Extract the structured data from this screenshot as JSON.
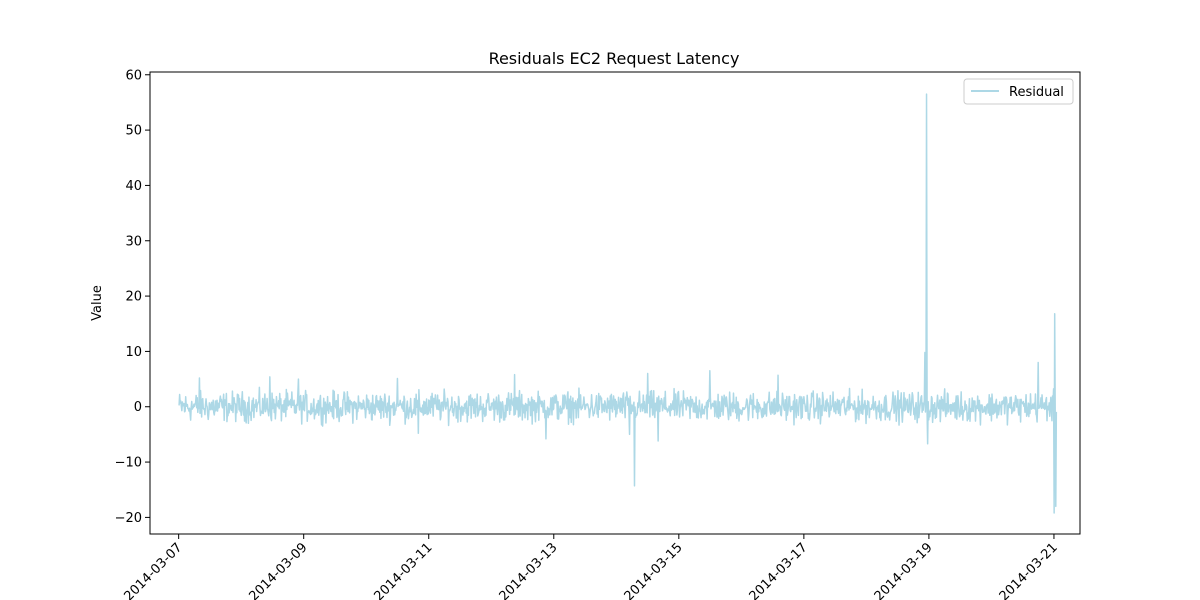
{
  "chart_data": {
    "type": "line",
    "title": "Residuals EC2 Request Latency",
    "xlabel": "",
    "ylabel": "Value",
    "xlim": [
      "2014-03-06T13:00",
      "2014-03-21T10:00"
    ],
    "ylim": [
      -23,
      60.5
    ],
    "x_ticks": [
      "2014-03-07",
      "2014-03-09",
      "2014-03-11",
      "2014-03-13",
      "2014-03-15",
      "2014-03-17",
      "2014-03-19",
      "2014-03-21"
    ],
    "y_ticks": [
      -20,
      -10,
      0,
      10,
      20,
      30,
      40,
      50,
      60
    ],
    "grid": false,
    "legend": {
      "placement": "top-right",
      "entries": [
        "Residual"
      ]
    },
    "series": [
      {
        "name": "Residual",
        "color": "#add8e6",
        "x_start": "2014-03-07T00:10",
        "x_end": "2014-03-21T01:00",
        "baseline_min": -3.5,
        "baseline_max": 3.5,
        "spikes": [
          {
            "x": "2014-03-07T08:00",
            "y": 5.2
          },
          {
            "x": "2014-03-08T11:00",
            "y": 5.4
          },
          {
            "x": "2014-03-08T22:00",
            "y": 5.0
          },
          {
            "x": "2014-03-10T12:00",
            "y": 5.1
          },
          {
            "x": "2014-03-10T20:00",
            "y": -4.8
          },
          {
            "x": "2014-03-12T09:00",
            "y": 5.8
          },
          {
            "x": "2014-03-12T21:00",
            "y": -5.8
          },
          {
            "x": "2014-03-14T05:00",
            "y": -5.0
          },
          {
            "x": "2014-03-14T07:00",
            "y": -14.3
          },
          {
            "x": "2014-03-14T12:00",
            "y": 6.0
          },
          {
            "x": "2014-03-14T16:00",
            "y": -6.2
          },
          {
            "x": "2014-03-15T12:00",
            "y": 6.5
          },
          {
            "x": "2014-03-16T14:00",
            "y": 5.7
          },
          {
            "x": "2014-03-18T22:30",
            "y": 9.8
          },
          {
            "x": "2014-03-18T23:00",
            "y": 56.5
          },
          {
            "x": "2014-03-18T23:30",
            "y": -6.7
          },
          {
            "x": "2014-03-20T18:00",
            "y": 8.0
          },
          {
            "x": "2014-03-21T00:00",
            "y": -19.2
          },
          {
            "x": "2014-03-21T00:20",
            "y": 16.8
          },
          {
            "x": "2014-03-21T00:40",
            "y": -18.0
          }
        ]
      }
    ]
  }
}
